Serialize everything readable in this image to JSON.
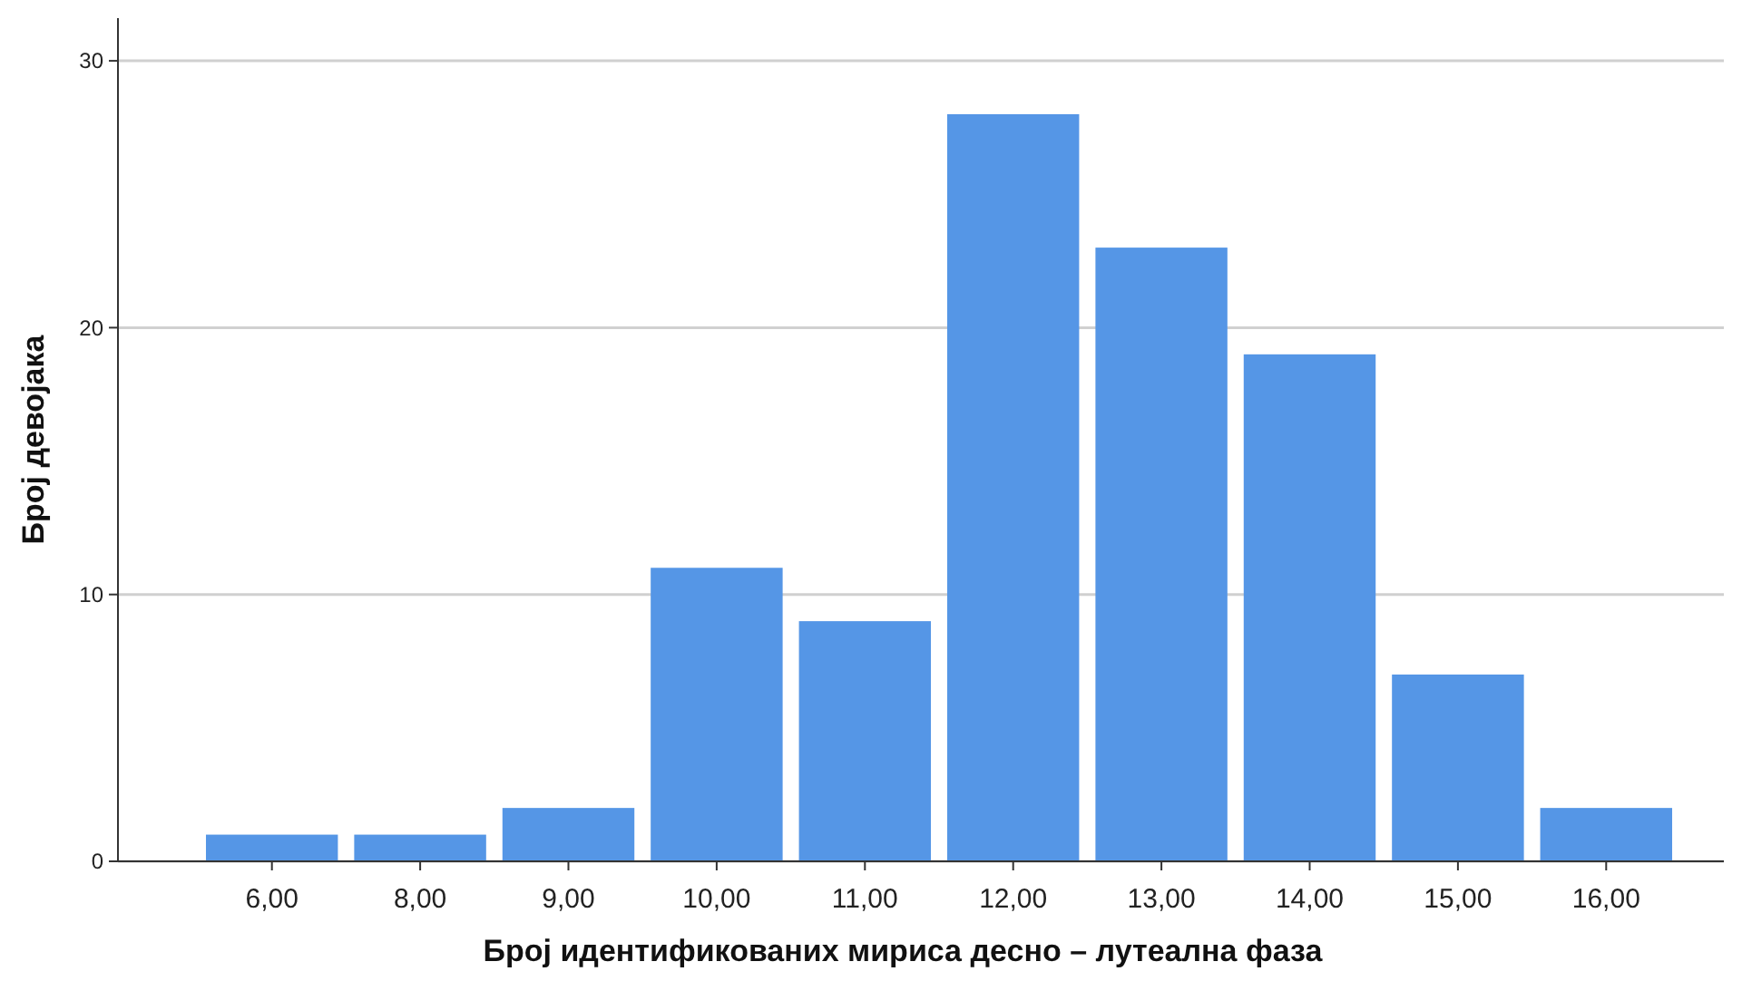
{
  "chart_data": {
    "type": "bar",
    "xlabel": "Број идентификованих мириса десно – лутеална фаза",
    "ylabel": "Број девојака",
    "categories": [
      "6,00",
      "8,00",
      "9,00",
      "10,00",
      "11,00",
      "12,00",
      "13,00",
      "14,00",
      "15,00",
      "16,00"
    ],
    "values": [
      1,
      1,
      2,
      11,
      9,
      28,
      23,
      19,
      7,
      2
    ],
    "color": "#5596e6",
    "ylim": [
      0,
      31.6
    ],
    "yticks": [
      0,
      10,
      20,
      30
    ],
    "grid": "y"
  }
}
